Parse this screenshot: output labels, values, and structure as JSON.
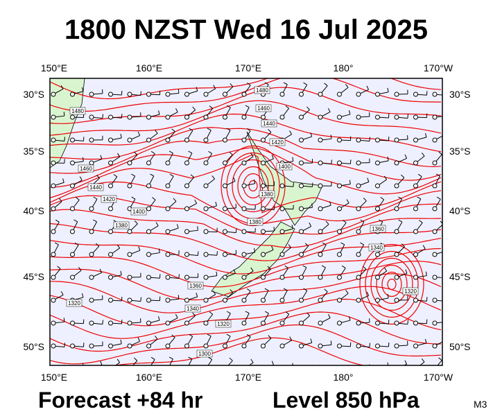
{
  "header": {
    "title": "1800 NZST Wed 16 Jul 2025"
  },
  "footer": {
    "forecast": "Forecast +84 hr",
    "level": "Level 850 hPa",
    "model": "M3"
  },
  "map": {
    "lon_labels": [
      "150°E",
      "160°E",
      "170°E",
      "180°",
      "170°W"
    ],
    "lat_labels": [
      "30°S",
      "35°S",
      "40°S",
      "45°S",
      "50°S"
    ],
    "contour_labels": [
      "1480",
      "1480",
      "1460",
      "1440",
      "1460",
      "1420",
      "1440",
      "1420",
      "1400",
      "1400",
      "1380",
      "1380",
      "1380",
      "1360",
      "1340",
      "1360",
      "1340",
      "1320",
      "1320",
      "1320",
      "1300"
    ]
  }
}
